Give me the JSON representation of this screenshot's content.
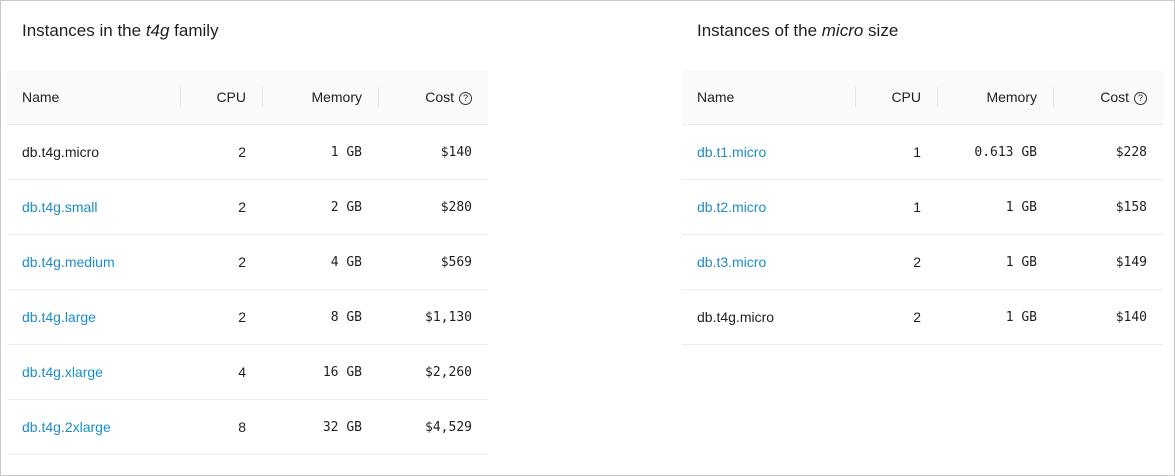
{
  "left": {
    "title_prefix": "Instances in the ",
    "title_em": "t4g",
    "title_suffix": " family",
    "columns": [
      "Name",
      "CPU",
      "Memory",
      "Cost"
    ],
    "help_icon": "question-circle-icon",
    "rows": [
      {
        "name": "db.t4g.micro",
        "link": false,
        "cpu": "2",
        "memory": "1 GB",
        "cost": "$140"
      },
      {
        "name": "db.t4g.small",
        "link": true,
        "cpu": "2",
        "memory": "2 GB",
        "cost": "$280"
      },
      {
        "name": "db.t4g.medium",
        "link": true,
        "cpu": "2",
        "memory": "4 GB",
        "cost": "$569"
      },
      {
        "name": "db.t4g.large",
        "link": true,
        "cpu": "2",
        "memory": "8 GB",
        "cost": "$1,130"
      },
      {
        "name": "db.t4g.xlarge",
        "link": true,
        "cpu": "4",
        "memory": "16 GB",
        "cost": "$2,260"
      },
      {
        "name": "db.t4g.2xlarge",
        "link": true,
        "cpu": "8",
        "memory": "32 GB",
        "cost": "$4,529"
      }
    ]
  },
  "right": {
    "title_prefix": "Instances of the ",
    "title_em": "micro",
    "title_suffix": " size",
    "columns": [
      "Name",
      "CPU",
      "Memory",
      "Cost"
    ],
    "help_icon": "question-circle-icon",
    "rows": [
      {
        "name": "db.t1.micro",
        "link": true,
        "cpu": "1",
        "memory": "0.613 GB",
        "cost": "$228"
      },
      {
        "name": "db.t2.micro",
        "link": true,
        "cpu": "1",
        "memory": "1 GB",
        "cost": "$158"
      },
      {
        "name": "db.t3.micro",
        "link": true,
        "cpu": "2",
        "memory": "1 GB",
        "cost": "$149"
      },
      {
        "name": "db.t4g.micro",
        "link": false,
        "cpu": "2",
        "memory": "1 GB",
        "cost": "$140"
      }
    ]
  },
  "colors": {
    "link": "#1c8dc6",
    "header_bg": "#fafafa"
  }
}
